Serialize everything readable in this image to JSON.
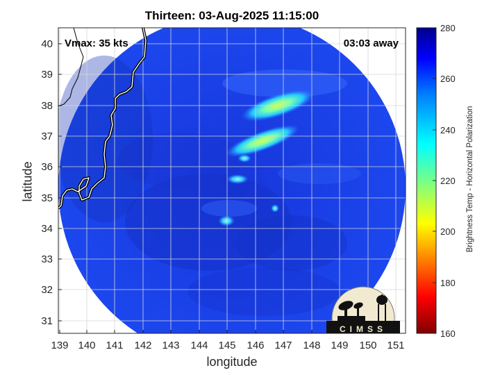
{
  "map": {
    "title": "Thirteen: 03-Aug-2025 11:15:00",
    "xlabel": "longitude",
    "ylabel": "latitude",
    "vmax_label": "Vmax: 35 kts",
    "away_label": "03:03 away",
    "logo_text": "CIMSS",
    "xlim": [
      138.95,
      151.2
    ],
    "ylim": [
      30.6,
      40.55
    ],
    "xticks": [
      "139",
      "140",
      "141",
      "142",
      "143",
      "144",
      "145",
      "146",
      "147",
      "148",
      "149",
      "150",
      "151"
    ],
    "yticks": [
      "31",
      "32",
      "33",
      "34",
      "35",
      "36",
      "37",
      "38",
      "39",
      "40"
    ],
    "grid": true
  },
  "colorbar": {
    "label": "Brightness Temp - Horizontal Polarization",
    "range": [
      160,
      280
    ],
    "ticks": [
      "160",
      "180",
      "200",
      "220",
      "240",
      "260",
      "280"
    ],
    "colormap": "jet"
  }
}
